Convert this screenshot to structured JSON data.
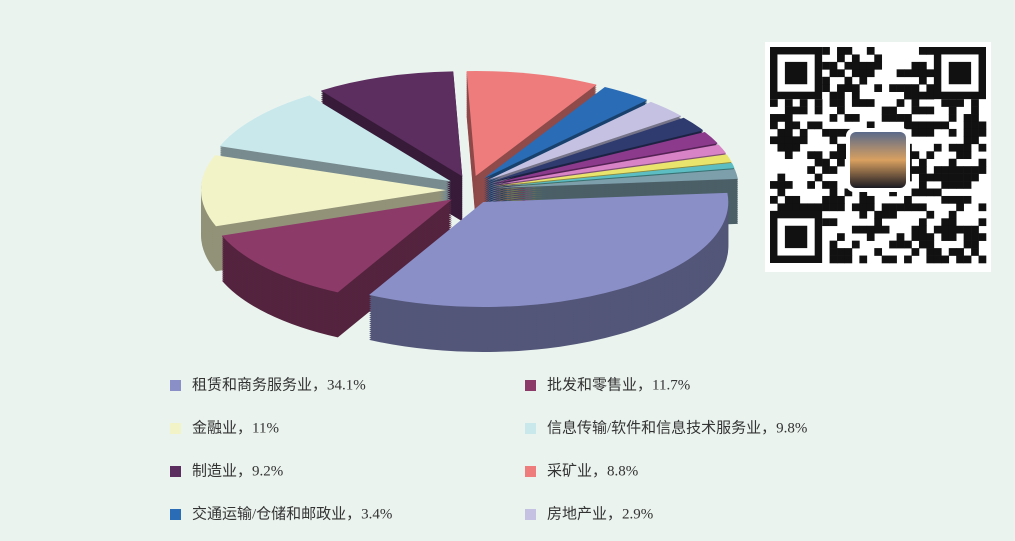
{
  "chart_data": {
    "type": "pie",
    "values": [
      34.1,
      11.7,
      11,
      9.8,
      9.2,
      8.8,
      3.4,
      2.9,
      2.3,
      1.9,
      1.4,
      1.2,
      0.8,
      1.5
    ],
    "value_labels": [
      "租赁和商务服务业，34.1%",
      "批发和零售业，11.7%",
      "金融业，11%",
      "信息传输/软件和信息技术服务业，9.8%",
      "制造业，9.2%",
      "采矿业，8.8%",
      "交通运输/仓储和邮政业，3.4%",
      "房地产业，2.9%",
      null,
      null,
      null,
      null,
      null,
      null
    ],
    "colors": [
      "#8a8fc8",
      "#8c3a68",
      "#f3f3c8",
      "#c8e8ec",
      "#5c2d5f",
      "#ee7c7c",
      "#2a6cb5",
      "#c4c1e2",
      "#2f3a6e",
      "#8c3a8c",
      "#d783c6",
      "#e8e46c",
      "#5cbec2",
      "#7d9eab"
    ]
  }
}
